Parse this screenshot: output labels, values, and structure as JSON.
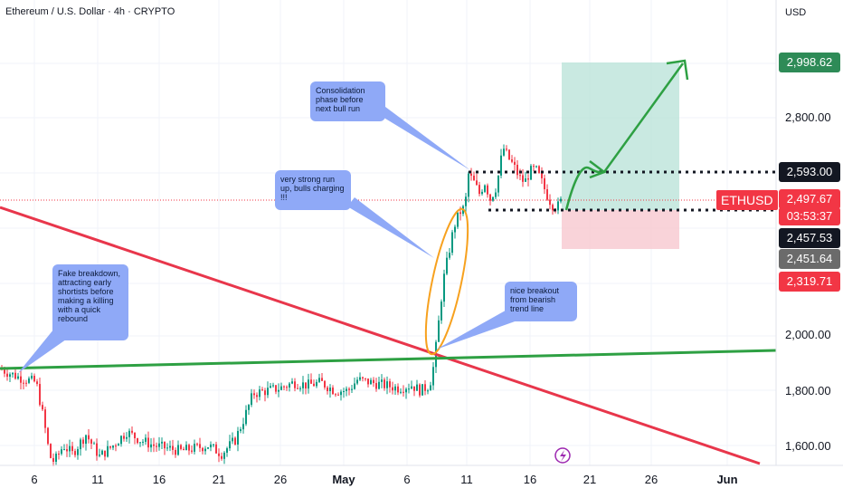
{
  "header": {
    "title": "Ethereum / U.S. Dollar · 4h · CRYPTO",
    "currency": "USD"
  },
  "symbol_tag": "ETHUSD",
  "price_axis": [
    "2,800.00",
    "2,000.00",
    "1,800.00",
    "1,600.00"
  ],
  "price_labels": {
    "target": "2,998.62",
    "resistance": "2,593.00",
    "current": "2,497.67",
    "countdown": "03:53:37",
    "support": "2,457.53",
    "level_a": "2,451.64",
    "stop": "2,319.71"
  },
  "date_axis": [
    "6",
    "11",
    "16",
    "21",
    "26",
    "May",
    "6",
    "11",
    "16",
    "21",
    "26",
    "Jun"
  ],
  "annotations": {
    "fake_breakdown": "Fake breakdown, attracting early shortists before making a killing with a quick rebound",
    "strong_run": "very strong run up, bulls charging !!!",
    "consolidation": "Consolidation phase before next bull run",
    "breakout": "nice breakout from bearish trend line"
  },
  "colors": {
    "up": "#089981",
    "down": "#f23645",
    "bull_green": "#2ea043",
    "trend_red": "#e8364b",
    "target_zone": "#b2dfd4",
    "stop_zone": "#f7c8cf",
    "note_bg": "#8fa9f7",
    "ellipse": "#f7a11e"
  },
  "chart_data": {
    "type": "candlestick",
    "symbol": "ETHUSD",
    "interval": "4h",
    "y_axis_ticks": [
      1600,
      1800,
      2000,
      2800
    ],
    "levels": {
      "target": 2998.62,
      "resistance": 2593.0,
      "current": 2497.67,
      "support": 2457.53,
      "stop": 2319.71
    },
    "x_axis_ticks": [
      "6",
      "11",
      "16",
      "21",
      "26",
      "May",
      "6",
      "11",
      "16",
      "21",
      "26",
      "Jun"
    ]
  }
}
